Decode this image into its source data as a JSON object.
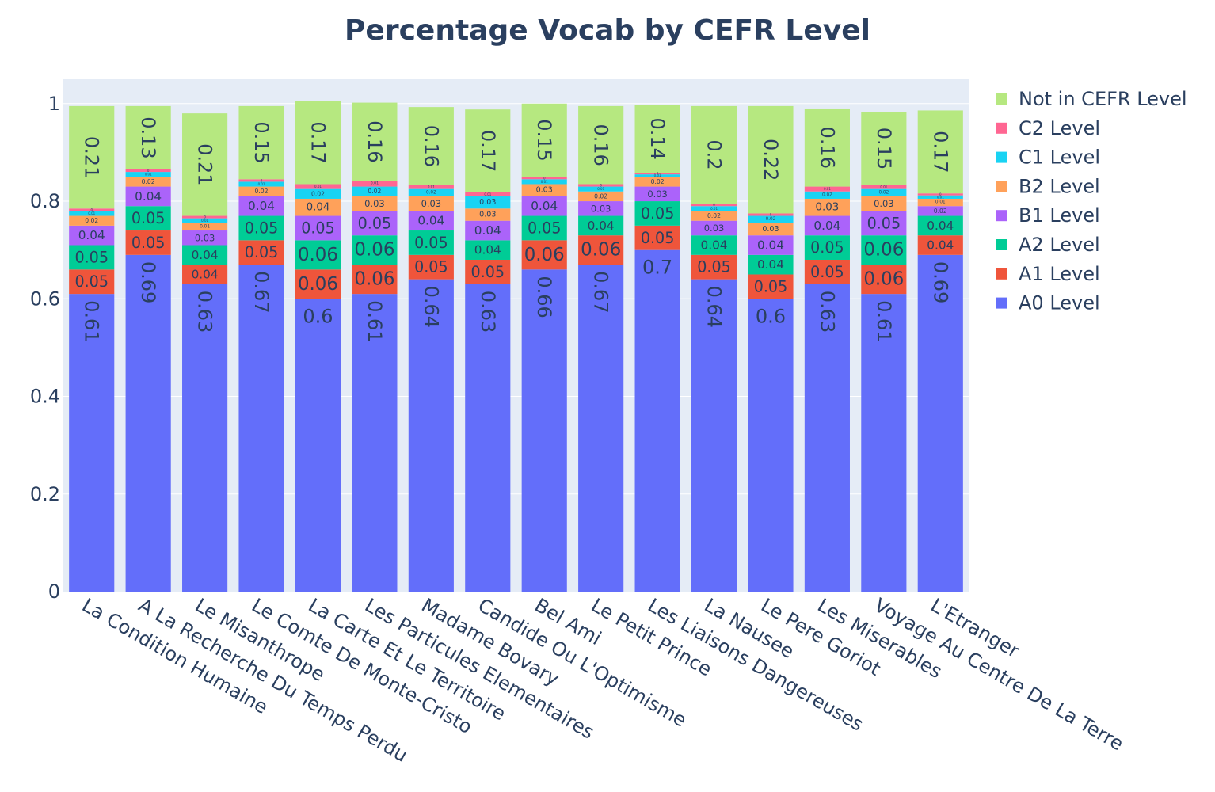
{
  "chart_data": {
    "type": "bar",
    "barmode": "stack",
    "title": "Percentage Vocab by CEFR Level",
    "xlabel": "",
    "ylabel": "",
    "ylim": [
      0,
      1.05
    ],
    "yticks": [
      0,
      0.2,
      0.4,
      0.6,
      0.8,
      1
    ],
    "ytick_labels": [
      "0",
      "0.2",
      "0.4",
      "0.6",
      "0.8",
      "1"
    ],
    "grid": true,
    "legend_position": "top-right",
    "categories": [
      "La Condition Humaine",
      "A La Recherche Du Temps Perdu",
      "Le Misanthrope",
      "Le Comte De Monte-Cristo",
      "La Carte Et Le Territoire",
      "Les Particules Elementaires",
      "Madame Bovary",
      "Candide Ou L'Optimisme",
      "Bel Ami",
      "Le Petit Prince",
      "Les Liaisons Dangereuses",
      "La Nausee",
      "Le Pere Goriot",
      "Les Miserables",
      "Voyage Au Centre De La Terre",
      "L'Etranger"
    ],
    "series": [
      {
        "name": "A0 Level",
        "color": "#636efa",
        "values": [
          0.61,
          0.69,
          0.63,
          0.67,
          0.6,
          0.61,
          0.64,
          0.63,
          0.66,
          0.67,
          0.7,
          0.64,
          0.6,
          0.63,
          0.61,
          0.69
        ],
        "labels": [
          "0.61",
          "0.69",
          "0.63",
          "0.67",
          "0.6",
          "0.61",
          "0.64",
          "0.63",
          "0.66",
          "0.67",
          "0.7",
          "0.64",
          "0.6",
          "0.63",
          "0.61",
          "0.69"
        ]
      },
      {
        "name": "A1 Level",
        "color": "#EF553B",
        "values": [
          0.05,
          0.05,
          0.04,
          0.05,
          0.06,
          0.06,
          0.05,
          0.05,
          0.06,
          0.06,
          0.05,
          0.05,
          0.05,
          0.05,
          0.06,
          0.04
        ],
        "labels": [
          "0.05",
          "0.05",
          "0.04",
          "0.05",
          "0.06",
          "0.06",
          "0.05",
          "0.05",
          "0.06",
          "0.06",
          "0.05",
          "0.05",
          "0.05",
          "0.05",
          "0.06",
          "0.04"
        ]
      },
      {
        "name": "A2 Level",
        "color": "#00cc96",
        "values": [
          0.05,
          0.05,
          0.04,
          0.05,
          0.06,
          0.06,
          0.05,
          0.04,
          0.05,
          0.04,
          0.05,
          0.04,
          0.04,
          0.05,
          0.06,
          0.04
        ],
        "labels": [
          "0.05",
          "0.05",
          "0.04",
          "0.05",
          "0.06",
          "0.06",
          "0.05",
          "0.04",
          "0.05",
          "0.04",
          "0.05",
          "0.04",
          "0.04",
          "0.05",
          "0.06",
          "0.04"
        ]
      },
      {
        "name": "B1 Level",
        "color": "#ab63fa",
        "values": [
          0.04,
          0.04,
          0.03,
          0.04,
          0.05,
          0.05,
          0.04,
          0.04,
          0.04,
          0.03,
          0.03,
          0.03,
          0.04,
          0.04,
          0.05,
          0.02
        ],
        "labels": [
          "0.04",
          "0.04",
          "0.03",
          "0.04",
          "0.05",
          "0.05",
          "0.04",
          "0.04",
          "0.04",
          "0.03",
          "0.03",
          "0.03",
          "0.04",
          "0.04",
          "0.05",
          "0.02"
        ]
      },
      {
        "name": "B2 Level",
        "color": "#FFA15A",
        "values": [
          0.02,
          0.02,
          0.015,
          0.02,
          0.035,
          0.03,
          0.03,
          0.025,
          0.025,
          0.02,
          0.02,
          0.02,
          0.025,
          0.035,
          0.03,
          0.015
        ],
        "labels": [
          "0.02",
          "0.02",
          "0.01",
          "0.02",
          "0.04",
          "0.03",
          "0.03",
          "0.03",
          "0.03",
          "0.02",
          "0.02",
          "0.02",
          "0.03",
          "0.03",
          "0.03",
          "0.01"
        ]
      },
      {
        "name": "C1 Level",
        "color": "#19d3f3",
        "values": [
          0.01,
          0.01,
          0.01,
          0.01,
          0.02,
          0.02,
          0.015,
          0.025,
          0.01,
          0.01,
          0.005,
          0.01,
          0.015,
          0.015,
          0.015,
          0.007
        ],
        "labels": [
          "0.01",
          "0.01",
          "0.01",
          "0.01",
          "0.02",
          "0.02",
          "0.02",
          "0.03",
          "0.01",
          "0.01",
          "0.01",
          "0.01",
          "0.02",
          "0.02",
          "0.02",
          "0.01"
        ]
      },
      {
        "name": "C2 Level",
        "color": "#FF6692",
        "values": [
          0.005,
          0.005,
          0.005,
          0.005,
          0.01,
          0.012,
          0.008,
          0.008,
          0.005,
          0.005,
          0.003,
          0.005,
          0.005,
          0.01,
          0.008,
          0.004
        ],
        "labels": [
          "0",
          "0",
          "0",
          "0",
          "0.01",
          "0.01",
          "0.01",
          "0.01",
          "0",
          "0",
          "0",
          "0",
          "0",
          "0.01",
          "0.01",
          "0"
        ]
      },
      {
        "name": "Not in CEFR Level",
        "color": "#B6E880",
        "values": [
          0.21,
          0.13,
          0.21,
          0.15,
          0.17,
          0.16,
          0.16,
          0.17,
          0.15,
          0.16,
          0.14,
          0.2,
          0.22,
          0.16,
          0.15,
          0.17
        ],
        "labels": [
          "0.21",
          "0.13",
          "0.21",
          "0.15",
          "0.17",
          "0.16",
          "0.16",
          "0.17",
          "0.15",
          "0.16",
          "0.14",
          "0.2",
          "0.22",
          "0.16",
          "0.15",
          "0.17"
        ]
      }
    ]
  }
}
